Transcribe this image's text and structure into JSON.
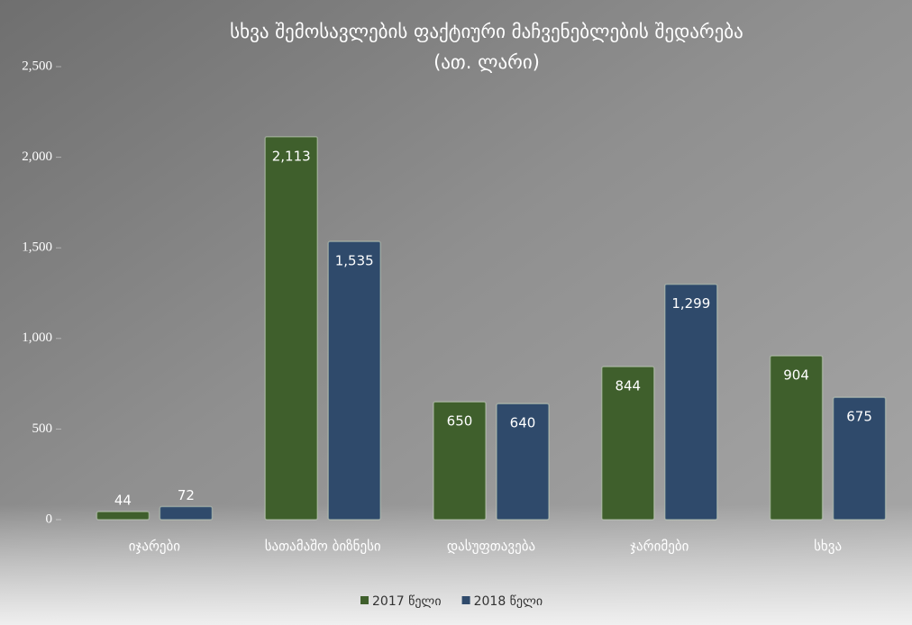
{
  "chart_data": {
    "type": "bar",
    "title": "სხვა შემოსავლების ფაქტიური მაჩვენებლების შედარება",
    "subtitle": "(ათ. ლარი)",
    "categories": [
      "იჯარები",
      "სათამაშო ბიზნესი",
      "დასუფთავება",
      "ჯარიმები",
      "სხვა"
    ],
    "series": [
      {
        "name": "2017 წელი",
        "color": "#3f5f2c",
        "values": [
          44,
          2113,
          650,
          844,
          904
        ],
        "value_labels": [
          "44",
          "2,113",
          "650",
          "844",
          "904"
        ]
      },
      {
        "name": "2018 წელი",
        "color": "#2f4a6b",
        "values": [
          72,
          1535,
          640,
          1299,
          675
        ],
        "value_labels": [
          "72",
          "1,535",
          "640",
          "1,299",
          "675"
        ]
      }
    ],
    "ylim": [
      0,
      2500
    ],
    "yticks": [
      0,
      500,
      {
        "value": 1000,
        "label": "1,000"
      },
      {
        "value": 1500,
        "label": "1,500"
      },
      {
        "value": 2000,
        "label": "2,000"
      },
      {
        "value": 2500,
        "label": "2,500"
      }
    ],
    "legend": "bottom"
  }
}
